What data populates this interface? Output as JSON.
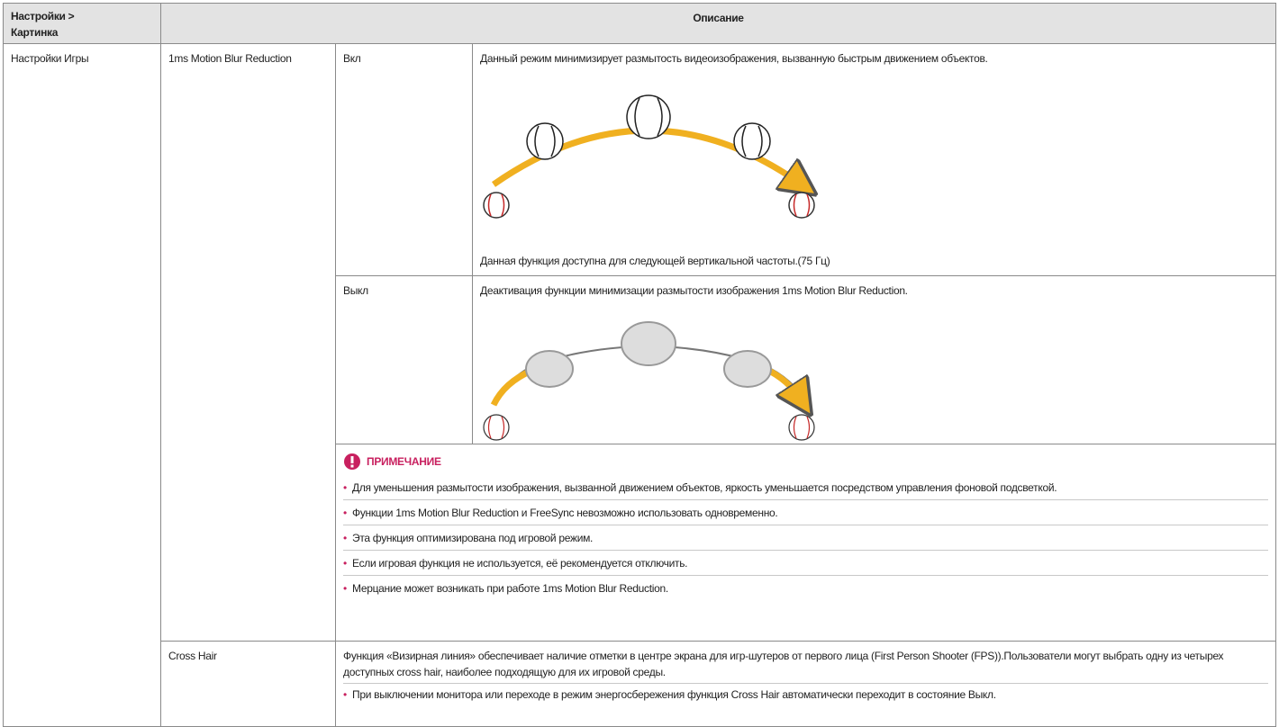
{
  "header": {
    "setting_lines": [
      "Настройки >",
      "Картинка"
    ],
    "description": "Описание"
  },
  "section": "Настройки Игры",
  "feature": "1ms Motion Blur Reduction",
  "options": [
    {
      "label": "Вкл",
      "text": "Данный режим минимизирует размытость видеоизображения, вызванную быстрым движением объектов.",
      "footnote": "Данная функция доступна для следующей вертикальной частоты.(75 Гц)"
    },
    {
      "label": "Выкл",
      "text": "Деактивация функции минимизации размытости изображения 1ms Motion Blur Reduction."
    }
  ],
  "note": {
    "title": "ПРИМЕЧАНИЕ",
    "items": [
      "Для уменьшения размытости изображения, вызванной движением объектов, яркость уменьшается посредством управления фоновой подсветкой.",
      "Функции 1ms Motion Blur Reduction и FreeSync невозможно использовать одновременно.",
      "Эта функция оптимизирована под игровой режим.",
      "Если игровая функция не используется, её рекомендуется отключить.",
      "Мерцание может возникать при работе 1ms Motion Blur Reduction."
    ]
  },
  "cross_hair": {
    "label": "Cross Hair",
    "text": "Функция «Визирная линия» обеспечивает наличие отметки в центре экрана для игр-шутеров от первого лица (First Person Shooter (FPS)).Пользователи могут выбрать одну из четырех доступных cross hair, наиболее подходящую для их игровой среды.",
    "items": [
      "При выключении монитора или переходе в режим энергосбережения функция Cross Hair автоматически переходит в состояние Выкл."
    ]
  }
}
